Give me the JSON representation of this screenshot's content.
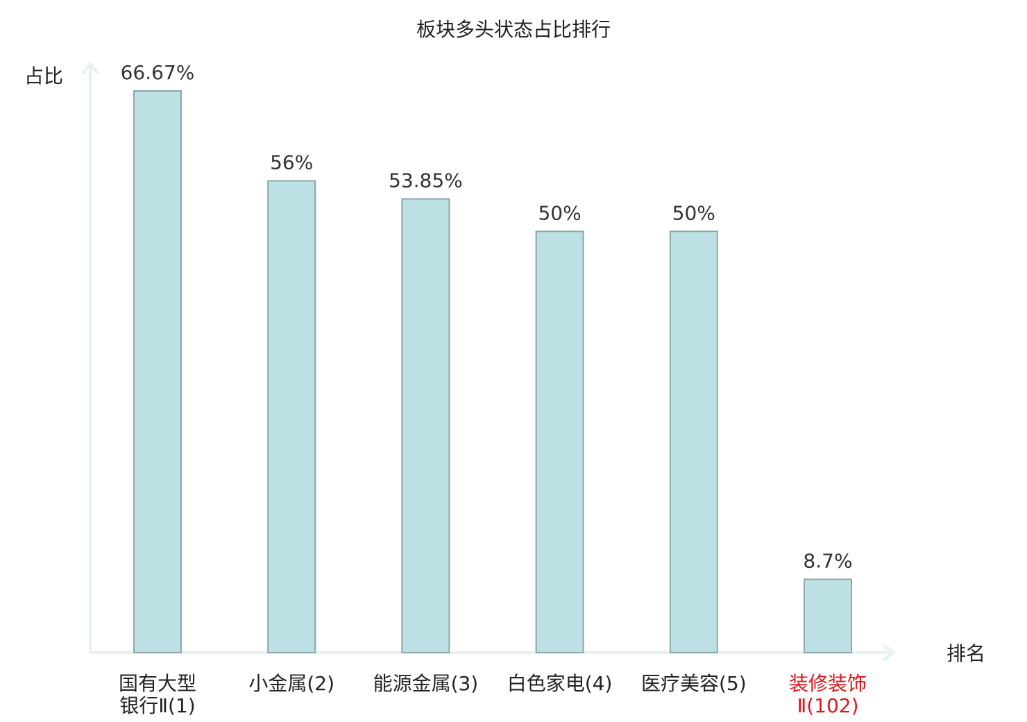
{
  "chart_data": {
    "type": "bar",
    "title": "板块多头状态占比排行",
    "ylabel": "占比",
    "xlabel": "排名",
    "categories": [
      [
        "国有大型",
        "银行Ⅱ(1)"
      ],
      [
        "小金属(2)"
      ],
      [
        "能源金属(3)"
      ],
      [
        "白色家电(4)"
      ],
      [
        "医疗美容(5)"
      ],
      [
        "装修装饰",
        "Ⅱ(102)"
      ]
    ],
    "values": [
      66.67,
      56,
      53.85,
      50,
      50,
      8.7
    ],
    "value_labels": [
      "66.67%",
      "56%",
      "53.85%",
      "50%",
      "50%",
      "8.7%"
    ],
    "highlight_index": 5,
    "grid": false
  },
  "colors": {
    "bar_fill": "#bce0e3",
    "bar_stroke": "#8aa8ab",
    "axis": "#e3f3f1",
    "highlight": "#e0161b"
  }
}
